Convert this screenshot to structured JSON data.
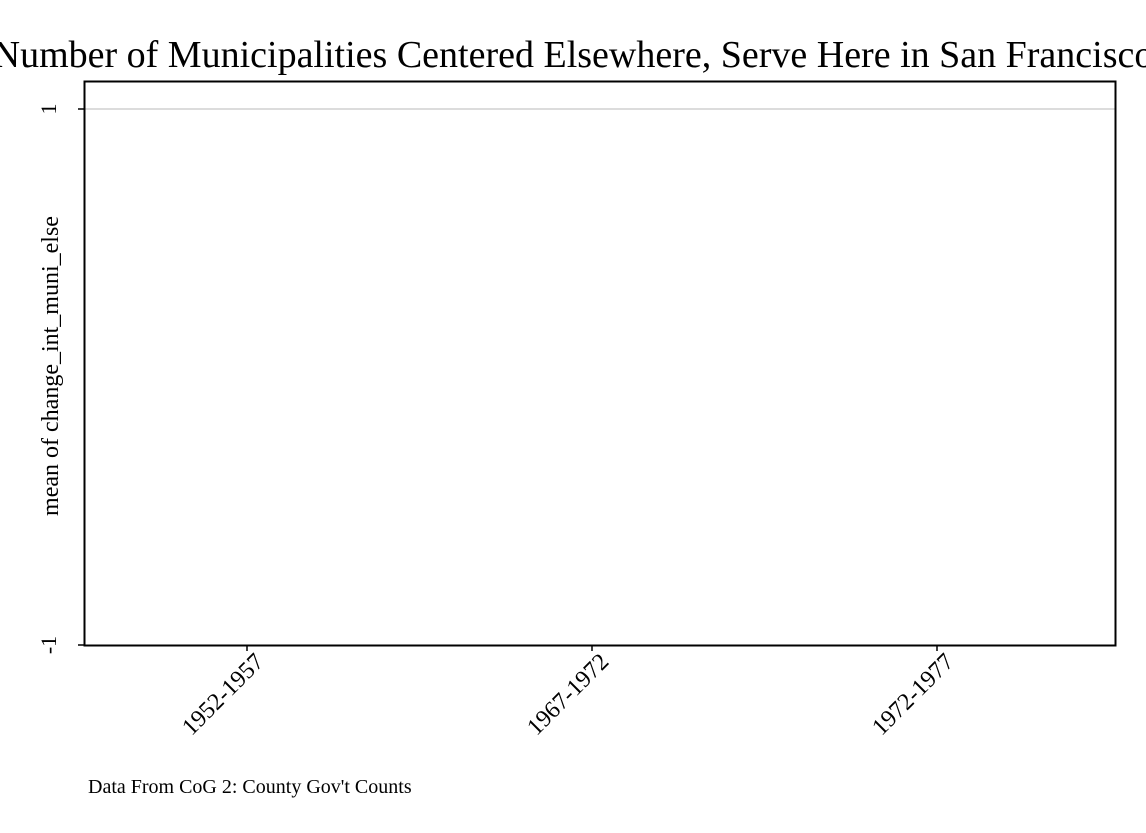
{
  "chart_data": {
    "type": "bar",
    "title": "Number of Municipalities Centered Elsewhere, Serve Here in San Francisco",
    "xlabel": "",
    "ylabel": "mean of change_int_muni_else",
    "categories": [
      "1952-1957",
      "1967-1972",
      "1972-1977"
    ],
    "values": [
      null,
      null,
      null
    ],
    "y_ticks": [
      1,
      -1
    ],
    "y_tick_labels": [
      "1",
      "-1"
    ],
    "ylim": [
      -1,
      1
    ],
    "grid": "horizontal",
    "legend": "none",
    "note": "Data From CoG 2: County Gov't Counts",
    "colors": {
      "grid": "#dcdcdc",
      "axis": "#000000",
      "background": "#ffffff"
    }
  }
}
